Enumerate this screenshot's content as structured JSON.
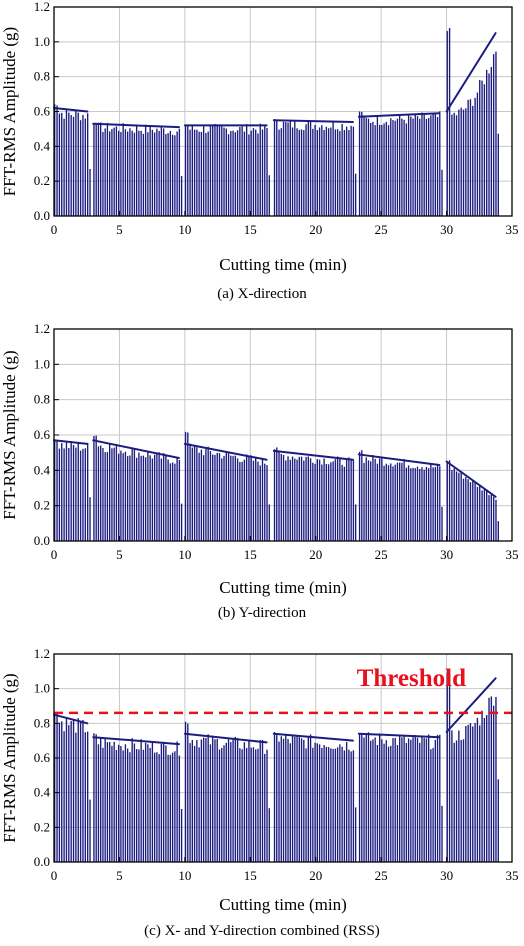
{
  "chart_data": [
    {
      "type": "bar",
      "caption": "(a) X-direction",
      "xlabel": "Cutting time (min)",
      "ylabel": "FFT-RMS Amplitude (g)",
      "xlim": [
        0,
        35
      ],
      "ylim": [
        0,
        1.2
      ],
      "xticks": [
        "0",
        "5",
        "10",
        "15",
        "20",
        "25",
        "30",
        "35"
      ],
      "yticks": [
        "0.0",
        "0.2",
        "0.4",
        "0.6",
        "0.8",
        "1.0",
        "1.2"
      ],
      "grid": true,
      "bar_color": "#1c1c80",
      "segments": [
        {
          "start": 0.0,
          "end": 2.7,
          "level_start": 0.62,
          "level_end": 0.6,
          "peak": 0.65
        },
        {
          "start": 3.0,
          "end": 9.7,
          "level_start": 0.53,
          "level_end": 0.51,
          "peak": 0.54
        },
        {
          "start": 10.0,
          "end": 16.4,
          "level_start": 0.52,
          "level_end": 0.52,
          "peak": 0.53
        },
        {
          "start": 16.8,
          "end": 23.0,
          "level_start": 0.55,
          "level_end": 0.54,
          "peak": 0.56
        },
        {
          "start": 23.3,
          "end": 29.6,
          "level_start": 0.57,
          "level_end": 0.59,
          "peak": 0.61
        },
        {
          "start": 30.0,
          "end": 33.9,
          "level_start": 0.6,
          "level_end": 1.05,
          "peak": 1.08
        }
      ]
    },
    {
      "type": "bar",
      "caption": "(b) Y-direction",
      "xlabel": "Cutting time (min)",
      "ylabel": "FFT-RMS Amplitude (g)",
      "xlim": [
        0,
        35
      ],
      "ylim": [
        0,
        1.2
      ],
      "xticks": [
        "0",
        "5",
        "10",
        "15",
        "20",
        "25",
        "30",
        "35"
      ],
      "yticks": [
        "0.0",
        "0.2",
        "0.4",
        "0.6",
        "0.8",
        "1.0",
        "1.2"
      ],
      "grid": true,
      "bar_color": "#1c1c80",
      "segments": [
        {
          "start": 0.0,
          "end": 2.7,
          "level_start": 0.57,
          "level_end": 0.55,
          "peak": 0.58
        },
        {
          "start": 3.0,
          "end": 9.7,
          "level_start": 0.57,
          "level_end": 0.47,
          "peak": 0.61
        },
        {
          "start": 10.0,
          "end": 16.4,
          "level_start": 0.55,
          "level_end": 0.46,
          "peak": 0.63
        },
        {
          "start": 16.8,
          "end": 23.0,
          "level_start": 0.51,
          "level_end": 0.46,
          "peak": 0.53
        },
        {
          "start": 23.3,
          "end": 29.6,
          "level_start": 0.49,
          "level_end": 0.43,
          "peak": 0.52
        },
        {
          "start": 30.0,
          "end": 33.9,
          "level_start": 0.45,
          "level_end": 0.25,
          "peak": 0.46
        }
      ]
    },
    {
      "type": "bar",
      "caption": "(c) X- and Y-direction combined (RSS)",
      "xlabel": "Cutting time (min)",
      "ylabel": "FFT-RMS Amplitude (g)",
      "xlim": [
        0,
        35
      ],
      "ylim": [
        0,
        1.2
      ],
      "xticks": [
        "0",
        "5",
        "10",
        "15",
        "20",
        "25",
        "30",
        "35"
      ],
      "yticks": [
        "0.0",
        "0.2",
        "0.4",
        "0.6",
        "0.8",
        "1.0",
        "1.2"
      ],
      "grid": true,
      "bar_color": "#1c1c80",
      "threshold": {
        "label": "Threshold",
        "value": 0.86,
        "color": "#e8101a"
      },
      "segments": [
        {
          "start": 0.0,
          "end": 2.7,
          "level_start": 0.85,
          "level_end": 0.8,
          "peak": 0.87
        },
        {
          "start": 3.0,
          "end": 9.7,
          "level_start": 0.72,
          "level_end": 0.68,
          "peak": 0.75
        },
        {
          "start": 10.0,
          "end": 16.4,
          "level_start": 0.74,
          "level_end": 0.69,
          "peak": 0.82
        },
        {
          "start": 16.8,
          "end": 23.0,
          "level_start": 0.74,
          "level_end": 0.7,
          "peak": 0.75
        },
        {
          "start": 23.3,
          "end": 29.6,
          "level_start": 0.74,
          "level_end": 0.72,
          "peak": 0.76
        },
        {
          "start": 30.0,
          "end": 33.9,
          "level_start": 0.75,
          "level_end": 1.06,
          "peak": 1.1
        }
      ]
    }
  ]
}
